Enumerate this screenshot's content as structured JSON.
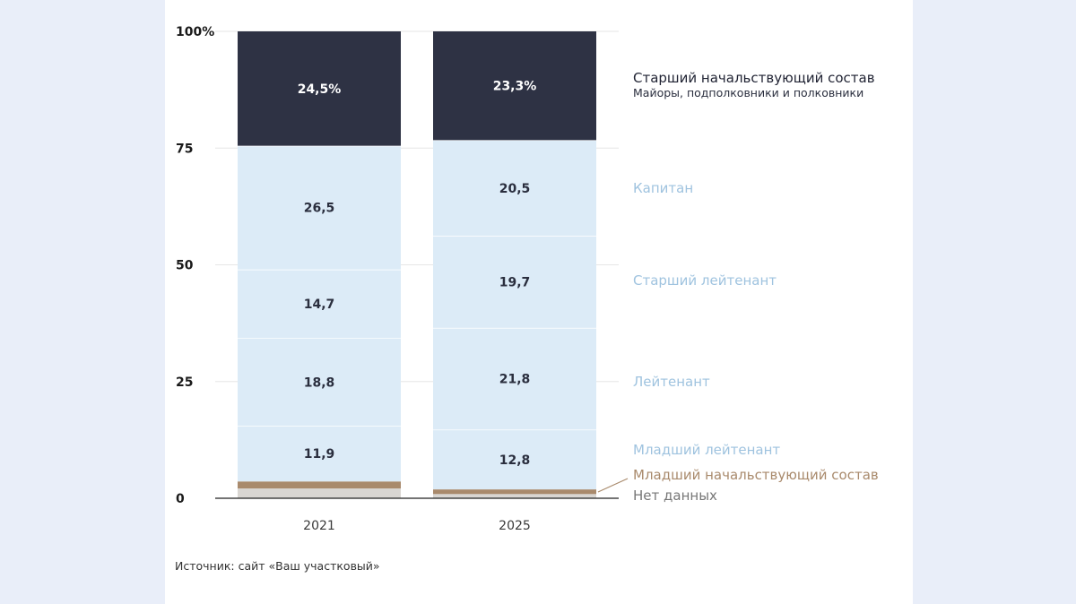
{
  "chart_data": {
    "type": "bar",
    "stacked": true,
    "categories": [
      "2021",
      "2025"
    ],
    "yticks": [
      "100%",
      "75",
      "50",
      "25",
      "0"
    ],
    "ylim": [
      0,
      100
    ],
    "series": [
      {
        "name": "Нет данных",
        "color": "#d9d6d2",
        "values": [
          2.1,
          0.9
        ],
        "labels": [
          "",
          ""
        ]
      },
      {
        "name": "Младший начальствующий состав",
        "color": "#a98a6c",
        "values": [
          1.5,
          1.0
        ],
        "labels": [
          "",
          ""
        ]
      },
      {
        "name": "Младший лейтенант",
        "color": "#dcebf7",
        "values": [
          11.9,
          12.8
        ],
        "labels": [
          "11,9",
          "12,8"
        ]
      },
      {
        "name": "Лейтенант",
        "color": "#dcebf7",
        "values": [
          18.8,
          21.8
        ],
        "labels": [
          "18,8",
          "21,8"
        ]
      },
      {
        "name": "Старший лейтенант",
        "color": "#dcebf7",
        "values": [
          14.7,
          19.7
        ],
        "labels": [
          "14,7",
          "19,7"
        ]
      },
      {
        "name": "Капитан",
        "color": "#dcebf7",
        "values": [
          26.5,
          20.5
        ],
        "labels": [
          "26,5",
          "20,5"
        ]
      },
      {
        "name": "Старший начальствующий состав",
        "sub": "Майоры, подполковники и полковники",
        "color": "#2e3244",
        "values": [
          24.5,
          23.3
        ],
        "labels": [
          "24,5%",
          "23,3%"
        ]
      }
    ],
    "legend_colors": {
      "dark": "#2e3244",
      "light": "#9fc3df",
      "brown": "#a98a6c",
      "grey": "#777777"
    }
  },
  "source": "Источник: сайт «Ваш участковый»"
}
